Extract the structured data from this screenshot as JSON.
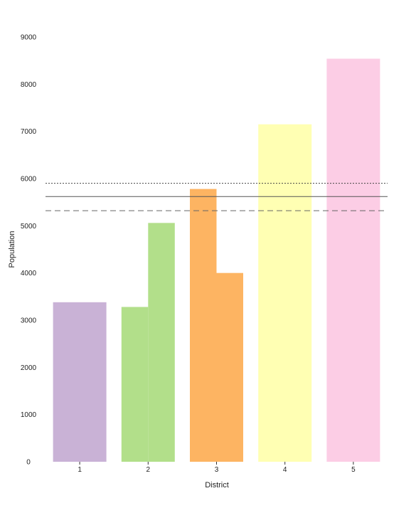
{
  "chart_data": {
    "type": "bar",
    "xlabel": "District",
    "ylabel": "Population",
    "ylim": [
      0,
      9000
    ],
    "yticks": [
      0,
      1000,
      2000,
      3000,
      4000,
      5000,
      6000,
      7000,
      8000,
      9000
    ],
    "grid": false,
    "legend": "none",
    "districts": [
      {
        "label": "1",
        "color": "#c9b2d6",
        "sub_values": [
          3380
        ]
      },
      {
        "label": "2",
        "color": "#b2df8a",
        "sub_values": [
          3280,
          5060
        ]
      },
      {
        "label": "3",
        "color": "#fdb462",
        "sub_values": [
          5780,
          4000
        ]
      },
      {
        "label": "4",
        "color": "#ffffb3",
        "sub_values": [
          7150
        ]
      },
      {
        "label": "5",
        "color": "#fccde5",
        "sub_values": [
          8540
        ]
      }
    ],
    "reference_lines": [
      {
        "style": "dotted",
        "y": 5900
      },
      {
        "style": "solid",
        "y": 5620
      },
      {
        "style": "dashed",
        "y": 5320
      }
    ]
  }
}
